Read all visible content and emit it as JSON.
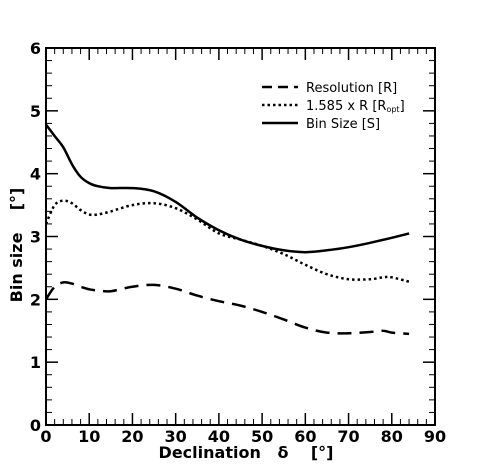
{
  "chart_data": {
    "type": "line",
    "xlabel": "Declination   δ    [°]",
    "ylabel": "Bin size    [°]",
    "xlim": [
      0,
      90
    ],
    "ylim": [
      0,
      6
    ],
    "x_ticks": [
      0,
      10,
      20,
      30,
      40,
      50,
      60,
      70,
      80,
      90
    ],
    "y_ticks": [
      0,
      1,
      2,
      3,
      4,
      5,
      6
    ],
    "grid": false,
    "legend_position": "top-right",
    "series": [
      {
        "name": "Resolution [R]",
        "style": "dashed",
        "x": [
          0,
          2,
          4,
          6,
          8,
          10,
          12,
          15,
          20,
          25,
          30,
          35,
          40,
          45,
          50,
          55,
          60,
          65,
          70,
          75,
          78,
          80,
          84
        ],
        "y": [
          2.0,
          2.2,
          2.27,
          2.25,
          2.2,
          2.16,
          2.14,
          2.13,
          2.2,
          2.23,
          2.17,
          2.06,
          1.97,
          1.9,
          1.8,
          1.68,
          1.55,
          1.47,
          1.46,
          1.48,
          1.5,
          1.47,
          1.45
        ]
      },
      {
        "name": "1.585 x R",
        "label_prefix": "1.585 x R  [R",
        "label_sub": "opt",
        "label_suffix": "]",
        "style": "dotted",
        "x": [
          0,
          2,
          4,
          6,
          8,
          10,
          12,
          15,
          20,
          25,
          30,
          35,
          40,
          45,
          50,
          55,
          60,
          65,
          70,
          75,
          78,
          80,
          84
        ],
        "y": [
          3.2,
          3.5,
          3.57,
          3.53,
          3.42,
          3.35,
          3.35,
          3.4,
          3.5,
          3.53,
          3.45,
          3.27,
          3.05,
          2.95,
          2.85,
          2.72,
          2.55,
          2.4,
          2.32,
          2.32,
          2.35,
          2.35,
          2.28
        ]
      },
      {
        "name": "Bin Size",
        "label_prefix": "Bin Size     [S]",
        "style": "solid",
        "x": [
          0,
          2,
          4,
          6,
          8,
          10,
          12,
          15,
          20,
          25,
          30,
          35,
          40,
          45,
          50,
          55,
          60,
          65,
          70,
          75,
          80,
          84
        ],
        "y": [
          4.78,
          4.6,
          4.42,
          4.15,
          3.95,
          3.85,
          3.8,
          3.77,
          3.77,
          3.72,
          3.55,
          3.3,
          3.1,
          2.95,
          2.85,
          2.78,
          2.75,
          2.78,
          2.83,
          2.9,
          2.98,
          3.05
        ]
      }
    ]
  }
}
